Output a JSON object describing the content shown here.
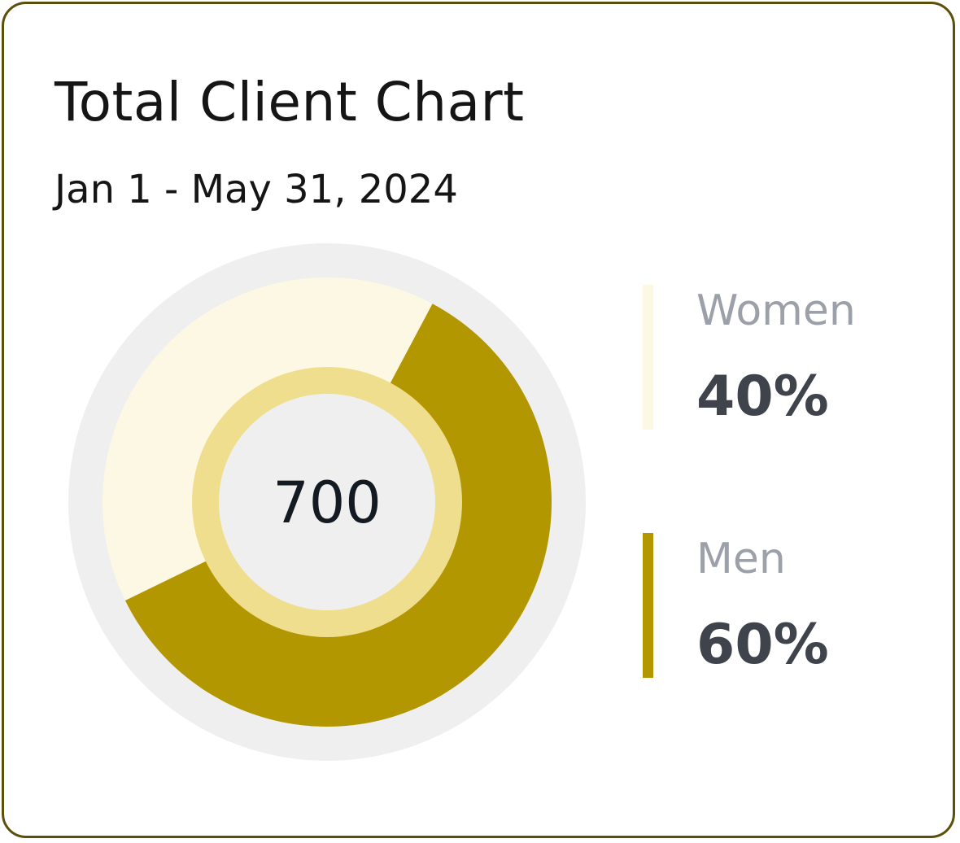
{
  "card": {
    "title": "Total Client Chart",
    "subtitle": "Jan 1 - May 31, 2024"
  },
  "chart_data": {
    "type": "pie",
    "title": "Total Client Chart",
    "subtitle": "Jan 1 - May 31, 2024",
    "center_label": "700",
    "categories": [
      "Women",
      "Men"
    ],
    "values": [
      40,
      60
    ],
    "value_labels": [
      "40%",
      "60%"
    ],
    "colors": [
      "#fdf8e3",
      "#b39700"
    ],
    "track_color": "#efefef",
    "inner_ring_color": "#eede8e",
    "center_color": "#efefef",
    "legend_position": "right"
  },
  "legend": [
    {
      "label": "Women",
      "value": "40%",
      "color": "#fdf8e3"
    },
    {
      "label": "Men",
      "value": "60%",
      "color": "#b39700"
    }
  ]
}
